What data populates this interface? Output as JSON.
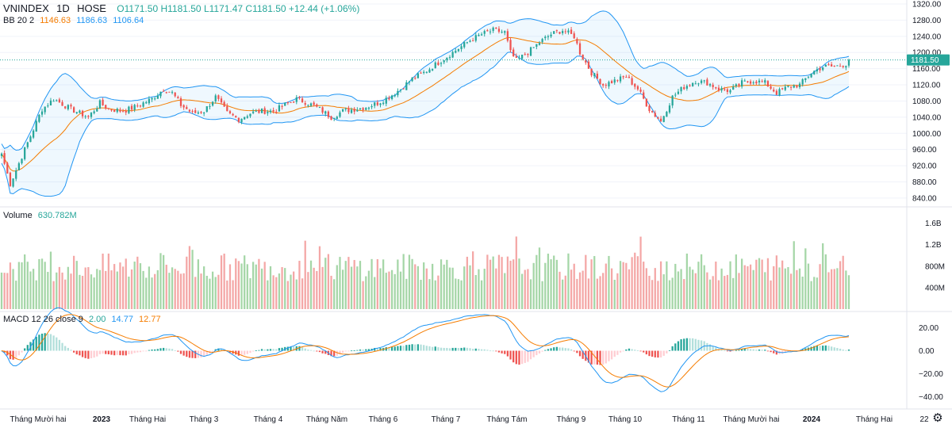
{
  "header": {
    "symbol": "VNINDEX",
    "interval": "1D",
    "exchange": "HOSE",
    "ohlc": "O1171.50 H1181.50 L1171.47 C1181.50 +12.44 (+1.06%)"
  },
  "indicators": {
    "bb_name": "BB 20 2",
    "bb_basis": "1146.63",
    "bb_upper": "1186.63",
    "bb_lower": "1106.64",
    "volume_name": "Volume",
    "volume_value": "630.782M",
    "macd_name": "MACD 12 26 close 9",
    "macd_hist": "2.00",
    "macd_line": "14.77",
    "macd_signal": "12.77"
  },
  "colors": {
    "up": "#26a69a",
    "down": "#ef5350",
    "up_volume": "#a5d6a7",
    "down_volume": "#f4a7a6",
    "bb_band": "#2196f3",
    "bb_basis": "#f57c00",
    "macd_line": "#2196f3",
    "signal_line": "#f57c00",
    "price_tag": "#26a69a"
  },
  "chart_data": {
    "type": "candlestick",
    "price_axis": {
      "range": [
        830,
        1320
      ],
      "ticks": [
        "1320.00",
        "1280.00",
        "1240.00",
        "1200.00",
        "1160.00",
        "1120.00",
        "1080.00",
        "1040.00",
        "1000.00",
        "960.00",
        "920.00",
        "880.00",
        "840.00"
      ],
      "last_price_label": "1181.50"
    },
    "volume_axis": {
      "range": [
        0,
        1800
      ],
      "ticks": [
        "1.6B",
        "1.2B",
        "800M",
        "400M"
      ]
    },
    "macd_axis": {
      "range": [
        -48,
        28
      ],
      "ticks": [
        "20.00",
        "0.00",
        "−20.00",
        "−40.00"
      ]
    },
    "time_axis": {
      "labels": [
        "Tháng Mười hai",
        "2023",
        "Tháng Hai",
        "Tháng 3",
        "Tháng 4",
        "Tháng Năm",
        "Tháng 6",
        "Tháng 7",
        "Tháng Tám",
        "Tháng 9",
        "Tháng 10",
        "Tháng 11",
        "Tháng Mười hai",
        "2024",
        "Tháng Hai",
        "22"
      ],
      "bold_labels": [
        "2023",
        "2024"
      ]
    },
    "close_keypoints": [
      [
        0,
        950
      ],
      [
        3,
        875
      ],
      [
        8,
        960
      ],
      [
        14,
        1060
      ],
      [
        18,
        1085
      ],
      [
        24,
        1060
      ],
      [
        30,
        1040
      ],
      [
        34,
        1075
      ],
      [
        37,
        1060
      ],
      [
        42,
        1055
      ],
      [
        46,
        1065
      ],
      [
        52,
        1085
      ],
      [
        56,
        1110
      ],
      [
        59,
        1100
      ],
      [
        62,
        1070
      ],
      [
        66,
        1050
      ],
      [
        70,
        1055
      ],
      [
        74,
        1090
      ],
      [
        78,
        1050
      ],
      [
        82,
        1035
      ],
      [
        86,
        1050
      ],
      [
        90,
        1055
      ],
      [
        94,
        1055
      ],
      [
        98,
        1070
      ],
      [
        102,
        1085
      ],
      [
        106,
        1075
      ],
      [
        110,
        1060
      ],
      [
        114,
        1040
      ],
      [
        118,
        1055
      ],
      [
        122,
        1060
      ],
      [
        126,
        1065
      ],
      [
        130,
        1075
      ],
      [
        134,
        1090
      ],
      [
        138,
        1110
      ],
      [
        142,
        1135
      ],
      [
        146,
        1150
      ],
      [
        150,
        1170
      ],
      [
        154,
        1190
      ],
      [
        158,
        1210
      ],
      [
        162,
        1230
      ],
      [
        166,
        1245
      ],
      [
        170,
        1255
      ],
      [
        174,
        1250
      ],
      [
        176,
        1200
      ],
      [
        178,
        1180
      ],
      [
        182,
        1200
      ],
      [
        186,
        1225
      ],
      [
        190,
        1245
      ],
      [
        194,
        1255
      ],
      [
        198,
        1240
      ],
      [
        200,
        1200
      ],
      [
        204,
        1150
      ],
      [
        208,
        1120
      ],
      [
        212,
        1130
      ],
      [
        216,
        1140
      ],
      [
        220,
        1110
      ],
      [
        224,
        1060
      ],
      [
        228,
        1030
      ],
      [
        232,
        1090
      ],
      [
        236,
        1115
      ],
      [
        240,
        1130
      ],
      [
        244,
        1125
      ],
      [
        248,
        1110
      ],
      [
        252,
        1105
      ],
      [
        256,
        1125
      ],
      [
        260,
        1130
      ],
      [
        264,
        1125
      ],
      [
        268,
        1100
      ],
      [
        272,
        1115
      ],
      [
        276,
        1120
      ],
      [
        280,
        1150
      ],
      [
        284,
        1165
      ],
      [
        288,
        1165
      ],
      [
        292,
        1171.5
      ],
      [
        293,
        1181.5
      ]
    ],
    "bollinger_last": {
      "upper": 1186.63,
      "basis": 1146.63,
      "lower": 1106.64
    },
    "last_volume": 630.782,
    "macd_last": {
      "macd": 14.77,
      "signal": 12.77,
      "hist": 2.0
    }
  }
}
